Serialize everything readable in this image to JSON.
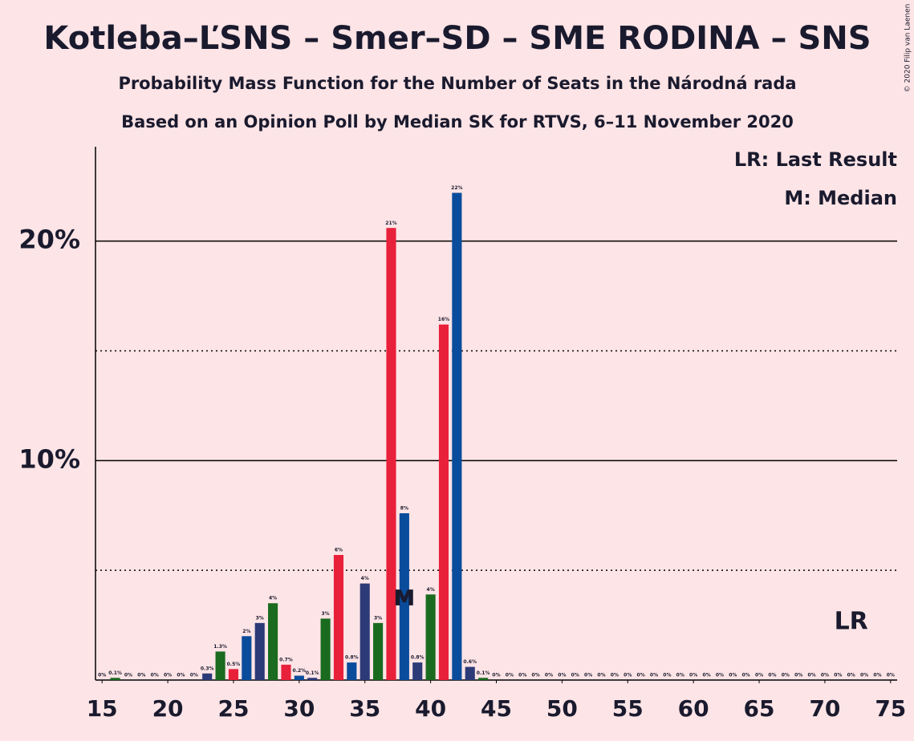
{
  "chart_data": {
    "type": "bar",
    "title": "Kotleba–ĽSNS – Smer–SD – SME RODINA – SNS",
    "subtitle": "Probability Mass Function for the Number of Seats in the Národná rada",
    "subtitle2": "Based on an Opinion Poll by Median SK for RTVS, 6–11 November 2020",
    "copyright": "© 2020 Filip van Laenen",
    "legend": [
      "LR: Last Result",
      "M: Median"
    ],
    "x": [
      15,
      16,
      17,
      18,
      19,
      20,
      21,
      22,
      23,
      24,
      25,
      26,
      27,
      28,
      29,
      30,
      31,
      32,
      33,
      34,
      35,
      36,
      37,
      38,
      39,
      40,
      41,
      42,
      43,
      44,
      45,
      46,
      47,
      48,
      49,
      50,
      51,
      52,
      53,
      54,
      55,
      56,
      57,
      58,
      59,
      60,
      61,
      62,
      63,
      64,
      65,
      66,
      67,
      68,
      69,
      70,
      71,
      72,
      73,
      74,
      75
    ],
    "values": [
      0,
      0.1,
      0,
      0,
      0,
      0,
      0,
      0,
      0.3,
      1.3,
      0.5,
      2.0,
      2.6,
      3.5,
      0.7,
      0.2,
      0.1,
      2.8,
      5.7,
      0.8,
      4.4,
      2.6,
      20.6,
      7.6,
      0.8,
      3.9,
      16.2,
      22.2,
      0.6,
      0.1,
      0,
      0,
      0,
      0,
      0,
      0,
      0,
      0,
      0,
      0,
      0,
      0,
      0,
      0,
      0,
      0,
      0,
      0,
      0,
      0,
      0,
      0,
      0,
      0,
      0,
      0,
      0,
      0,
      0,
      0,
      0
    ],
    "value_labels": [
      "0%",
      "0.1%",
      "0%",
      "0%",
      "0%",
      "0%",
      "0%",
      "0%",
      "0.3%",
      "1.3%",
      "0.5%",
      "2%",
      "3%",
      "4%",
      "0.7%",
      "0.2%",
      "0.1%",
      "3%",
      "6%",
      "0.8%",
      "4%",
      "3%",
      "21%",
      "8%",
      "0.8%",
      "4%",
      "16%",
      "22%",
      "0.6%",
      "0.1%",
      "0%",
      "0%",
      "0%",
      "0%",
      "0%",
      "0%",
      "0%",
      "0%",
      "0%",
      "0%",
      "0%",
      "0%",
      "0%",
      "0%",
      "0%",
      "0%",
      "0%",
      "0%",
      "0%",
      "0%",
      "0%",
      "0%",
      "0%",
      "0%",
      "0%",
      "0%",
      "0%",
      "0%",
      "0%",
      "0%",
      "0%"
    ],
    "color_cycle": [
      "#2c3a78",
      "#1a6b1f",
      "#e8203a",
      "#0a4c9c"
    ],
    "xlim": [
      14.5,
      75.5
    ],
    "xticks": [
      15,
      20,
      25,
      30,
      35,
      40,
      45,
      50,
      55,
      60,
      65,
      70,
      75
    ],
    "ylim": [
      0,
      24.3
    ],
    "yticks": [
      {
        "value": 10,
        "label": "10%"
      },
      {
        "value": 20,
        "label": "20%"
      }
    ],
    "dotted_gridlines": [
      5,
      15
    ],
    "median": 38,
    "median_label": "M",
    "last_result": 72,
    "last_result_label": "LR"
  }
}
